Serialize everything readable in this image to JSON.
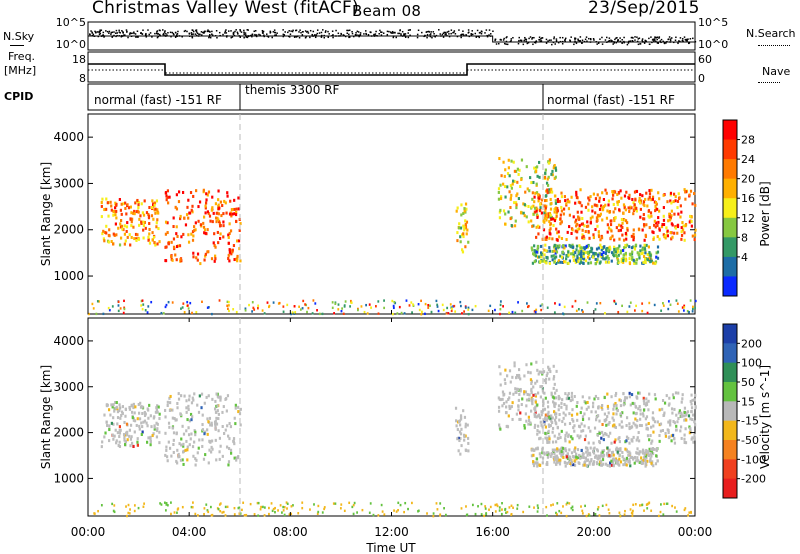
{
  "header": {
    "station": "Christmas Valley West (fitACF)",
    "beam": "Beam 08",
    "date": "23/Sep/2015"
  },
  "top_panels": {
    "nsky_label": "N.Sky",
    "nsearch_label": "N.Search",
    "noise_ticks": [
      "10^5",
      "10^0"
    ],
    "freq_label": "Freq.",
    "freq_unit": "[MHz]",
    "freq_ticks": [
      "18",
      "8"
    ],
    "nave_label": "Nave",
    "nave_ticks": [
      "60",
      "0"
    ],
    "cpid_label": "CPID",
    "cpid_segments": [
      {
        "label": "normal (fast) -151 RF",
        "start_hour": 0,
        "end_hour": 6
      },
      {
        "label": "themis 3300 RF",
        "start_hour": 6,
        "end_hour": 18
      },
      {
        "label": "normal (fast) -151 RF",
        "start_hour": 18,
        "end_hour": 24
      }
    ]
  },
  "colorbars": {
    "power": {
      "title": "Power [dB]",
      "ticks": [
        "28",
        "24",
        "20",
        "16",
        "12",
        "8",
        "4"
      ],
      "colors": [
        "#ff0000",
        "#ff3a00",
        "#ff7a00",
        "#ffb000",
        "#f6ef1a",
        "#86c841",
        "#339966",
        "#1d6da6",
        "#0a2aff"
      ]
    },
    "velocity": {
      "title": "Velocity [m s^-1]",
      "ticks": [
        "200",
        "100",
        "50",
        "15",
        "-15",
        "-50",
        "-100",
        "-200"
      ],
      "colors": [
        "#1c3fa8",
        "#2f63b6",
        "#2f8f57",
        "#63c23f",
        "#b8b8b8",
        "#f2b71b",
        "#f58220",
        "#f0401f",
        "#e81e1e"
      ]
    }
  },
  "chart_data": [
    {
      "type": "heatmap",
      "panel": "power",
      "ylabel": "Slant Range [km]",
      "xlabel": "Time UT",
      "xlim": [
        0,
        24
      ],
      "ylim": [
        180,
        4500
      ],
      "x_ticks": [
        "00:00",
        "04:00",
        "08:00",
        "12:00",
        "16:00",
        "20:00",
        "00:00"
      ],
      "y_ticks": [
        1000,
        2000,
        3000,
        4000
      ],
      "colorbar": "Power [dB]",
      "echo_bands": [
        {
          "t0": 0.5,
          "t1": 2.8,
          "range_low": 1700,
          "range_high": 2700,
          "power_db": 22
        },
        {
          "t0": 3.0,
          "t1": 6.0,
          "range_low": 1300,
          "range_high": 2900,
          "power_db": 26
        },
        {
          "t0": 14.5,
          "t1": 15.0,
          "range_low": 1550,
          "range_high": 2600,
          "power_db": 18
        },
        {
          "t0": 16.2,
          "t1": 18.5,
          "range_low": 2100,
          "range_high": 3600,
          "power_db": 16
        },
        {
          "t0": 17.5,
          "t1": 24.0,
          "range_low": 1800,
          "range_high": 2900,
          "power_db": 24
        },
        {
          "t0": 17.5,
          "t1": 22.5,
          "range_low": 1300,
          "range_high": 1700,
          "power_db": 12
        }
      ],
      "dashed_time_markers": [
        6,
        18
      ]
    },
    {
      "type": "heatmap",
      "panel": "velocity",
      "ylabel": "Slant Range [km]",
      "xlabel": "Time UT",
      "xlim": [
        0,
        24
      ],
      "ylim": [
        180,
        4500
      ],
      "x_ticks": [
        "00:00",
        "04:00",
        "08:00",
        "12:00",
        "16:00",
        "20:00",
        "00:00"
      ],
      "y_ticks": [
        1000,
        2000,
        3000,
        4000
      ],
      "colorbar": "Velocity [m s^-1]",
      "echo_bands": [
        {
          "t0": 0.5,
          "t1": 2.8,
          "range_low": 1700,
          "range_high": 2700,
          "velocity": 0
        },
        {
          "t0": 3.0,
          "t1": 6.0,
          "range_low": 1300,
          "range_high": 2900,
          "velocity": 0
        },
        {
          "t0": 14.5,
          "t1": 15.0,
          "range_low": 1550,
          "range_high": 2600,
          "velocity": 30
        },
        {
          "t0": 16.2,
          "t1": 18.5,
          "range_low": 2100,
          "range_high": 3600,
          "velocity": 0
        },
        {
          "t0": 17.5,
          "t1": 24.0,
          "range_low": 1800,
          "range_high": 2900,
          "velocity": 0
        },
        {
          "t0": 17.5,
          "t1": 22.5,
          "range_low": 1300,
          "range_high": 1700,
          "velocity": 0
        }
      ],
      "dashed_time_markers": [
        6,
        18
      ]
    }
  ]
}
